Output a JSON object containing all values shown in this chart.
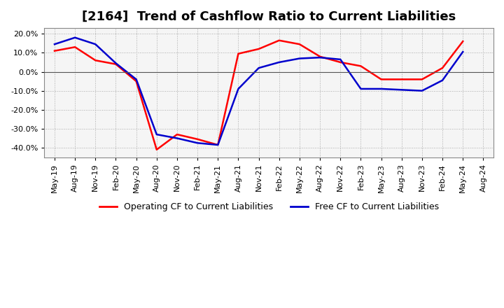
{
  "title": "[2164]  Trend of Cashflow Ratio to Current Liabilities",
  "x_labels": [
    "May-19",
    "Aug-19",
    "Nov-19",
    "Feb-20",
    "May-20",
    "Aug-20",
    "Nov-20",
    "Feb-21",
    "May-21",
    "Aug-21",
    "Nov-21",
    "Feb-22",
    "May-22",
    "Aug-22",
    "Nov-22",
    "Feb-23",
    "May-23",
    "Aug-23",
    "Nov-23",
    "Feb-24",
    "May-24",
    "Aug-24"
  ],
  "operating_cf": [
    11.0,
    13.0,
    6.0,
    4.0,
    -5.0,
    -41.0,
    -33.0,
    -35.5,
    -38.5,
    9.5,
    12.0,
    16.5,
    14.5,
    8.0,
    5.0,
    3.0,
    -4.0,
    -4.0,
    -4.0,
    2.0,
    16.0,
    null
  ],
  "free_cf": [
    14.5,
    18.0,
    14.5,
    4.5,
    -4.0,
    -33.0,
    -35.0,
    -37.5,
    -38.5,
    -9.0,
    2.0,
    5.0,
    7.0,
    7.5,
    6.5,
    -9.0,
    -9.0,
    -9.5,
    -10.0,
    -4.5,
    10.5,
    null
  ],
  "ylim": [
    -45,
    23
  ],
  "yticks": [
    20.0,
    10.0,
    0.0,
    -10.0,
    -20.0,
    -30.0,
    -40.0
  ],
  "operating_color": "#ff0000",
  "free_color": "#0000cd",
  "background_color": "#ffffff",
  "plot_bg_color": "#f5f5f5",
  "grid_color": "#aaaaaa",
  "title_fontsize": 13,
  "legend_labels": [
    "Operating CF to Current Liabilities",
    "Free CF to Current Liabilities"
  ]
}
